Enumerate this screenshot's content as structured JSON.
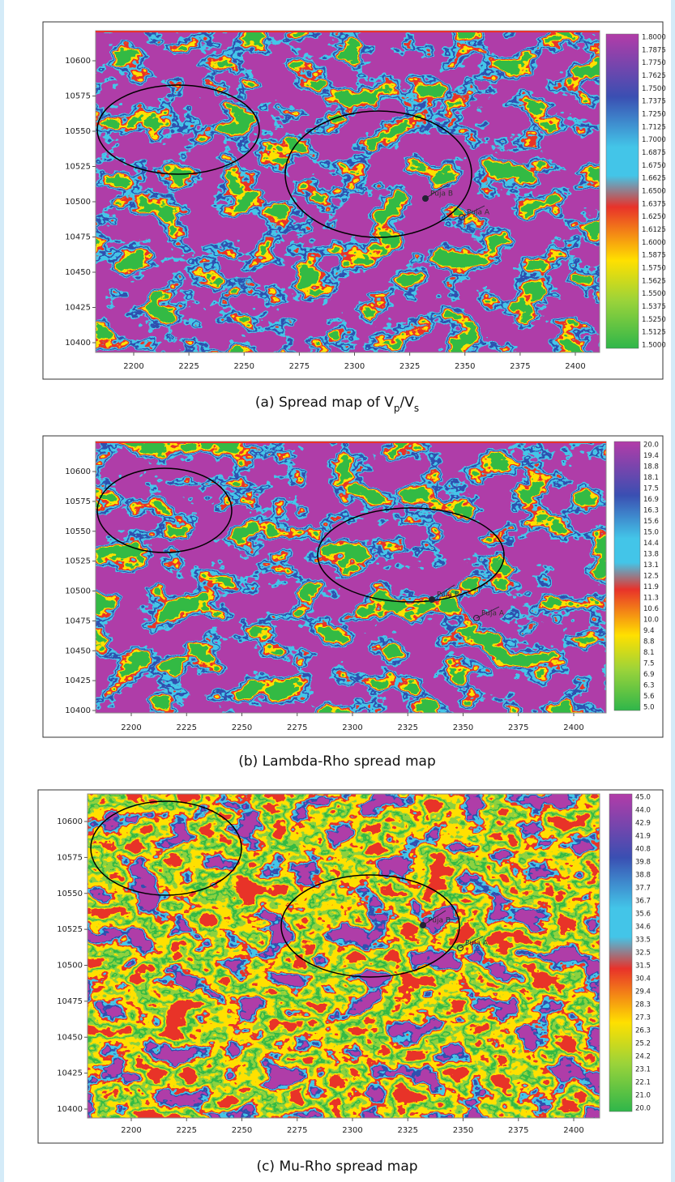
{
  "panels": [
    {
      "caption": [
        "(a) Spread map of V",
        "p",
        "/V",
        "s"
      ],
      "y_ticks": [
        "10600",
        "10575",
        "10550",
        "10525",
        "10500",
        "10475",
        "10450",
        "10425",
        "10400"
      ],
      "x_ticks": [
        "2200",
        "2225",
        "2250",
        "2275",
        "2300",
        "2325",
        "2350",
        "2375",
        "2400"
      ],
      "colorbar_labels": [
        "1.8000",
        "1.7875",
        "1.7750",
        "1.7625",
        "1.7500",
        "1.7375",
        "1.7250",
        "1.7125",
        "1.7000",
        "1.6875",
        "1.6750",
        "1.6625",
        "1.6500",
        "1.6375",
        "1.6250",
        "1.6125",
        "1.6000",
        "1.5875",
        "1.5750",
        "1.5625",
        "1.5500",
        "1.5375",
        "1.5250",
        "1.5125",
        "1.5000"
      ],
      "well_labels": [
        "Puja B",
        "Puja A"
      ]
    },
    {
      "caption": [
        "(b) Lambda-Rho spread map"
      ],
      "y_ticks": [
        "10600",
        "10575",
        "10550",
        "10525",
        "10500",
        "10475",
        "10450",
        "10425",
        "10400"
      ],
      "x_ticks": [
        "2200",
        "2225",
        "2250",
        "2275",
        "2300",
        "2325",
        "2350",
        "2375",
        "2400"
      ],
      "colorbar_labels": [
        "20.0",
        "19.4",
        "18.8",
        "18.1",
        "17.5",
        "16.9",
        "16.3",
        "15.6",
        "15.0",
        "14.4",
        "13.8",
        "13.1",
        "12.5",
        "11.9",
        "11.3",
        "10.6",
        "10.0",
        "9.4",
        "8.8",
        "8.1",
        "7.5",
        "6.9",
        "6.3",
        "5.6",
        "5.0"
      ],
      "well_labels": [
        "Puja B",
        "Puja A"
      ]
    },
    {
      "caption": [
        "(c) Mu-Rho spread map"
      ],
      "y_ticks": [
        "10600",
        "10575",
        "10550",
        "10525",
        "10500",
        "10475",
        "10450",
        "10425",
        "10400"
      ],
      "x_ticks": [
        "2200",
        "2225",
        "2250",
        "2275",
        "2300",
        "2325",
        "2350",
        "2375",
        "2400"
      ],
      "colorbar_labels": [
        "45.0",
        "44.0",
        "42.9",
        "41.9",
        "40.8",
        "39.8",
        "38.8",
        "37.7",
        "36.7",
        "35.6",
        "34.6",
        "33.5",
        "32.5",
        "31.5",
        "30.4",
        "29.4",
        "28.3",
        "27.3",
        "26.3",
        "25.2",
        "24.2",
        "23.1",
        "22.1",
        "21.0",
        "20.0"
      ],
      "well_labels": [
        "Puja B",
        "Puja A"
      ]
    }
  ]
}
